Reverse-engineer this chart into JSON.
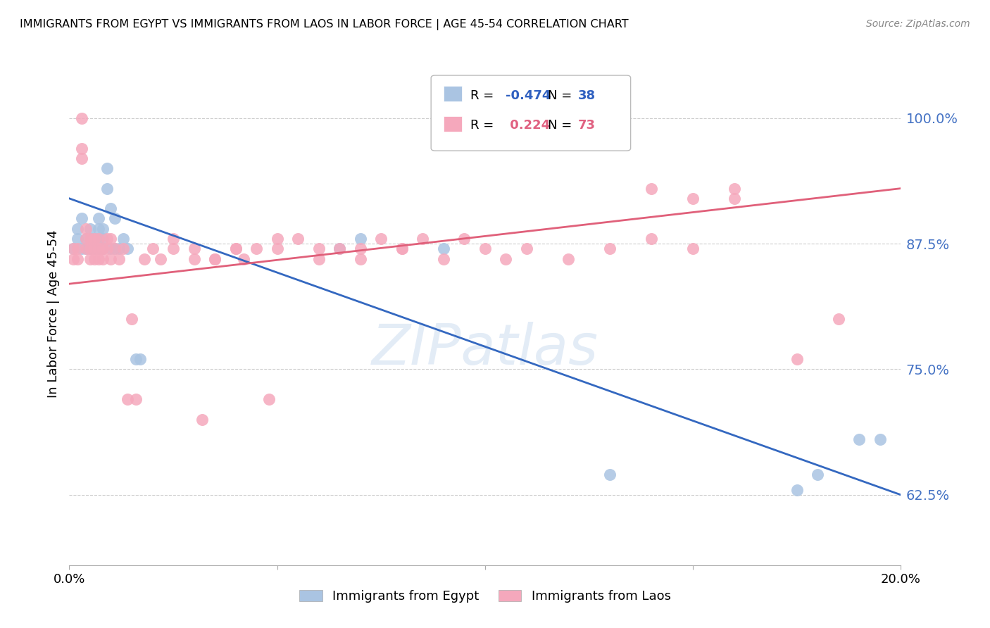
{
  "title": "IMMIGRANTS FROM EGYPT VS IMMIGRANTS FROM LAOS IN LABOR FORCE | AGE 45-54 CORRELATION CHART",
  "source": "Source: ZipAtlas.com",
  "ylabel": "In Labor Force | Age 45-54",
  "yticks": [
    0.625,
    0.75,
    0.875,
    1.0
  ],
  "ytick_labels": [
    "62.5%",
    "75.0%",
    "87.5%",
    "100.0%"
  ],
  "xmin": 0.0,
  "xmax": 0.2,
  "ymin": 0.555,
  "ymax": 1.055,
  "legend_egypt_r": "-0.474",
  "legend_egypt_n": "38",
  "legend_laos_r": "0.224",
  "legend_laos_n": "73",
  "egypt_color": "#aac4e2",
  "laos_color": "#f5a8bc",
  "egypt_line_color": "#3468c0",
  "laos_line_color": "#e0607a",
  "egypt_points_x": [
    0.001,
    0.002,
    0.002,
    0.003,
    0.003,
    0.004,
    0.004,
    0.005,
    0.005,
    0.005,
    0.006,
    0.006,
    0.007,
    0.007,
    0.007,
    0.007,
    0.008,
    0.008,
    0.008,
    0.009,
    0.009,
    0.01,
    0.01,
    0.011,
    0.011,
    0.012,
    0.013,
    0.014,
    0.016,
    0.017,
    0.065,
    0.07,
    0.09,
    0.13,
    0.175,
    0.18,
    0.19,
    0.195
  ],
  "egypt_points_y": [
    0.87,
    0.88,
    0.89,
    0.87,
    0.9,
    0.87,
    0.88,
    0.87,
    0.88,
    0.89,
    0.87,
    0.88,
    0.87,
    0.88,
    0.89,
    0.9,
    0.87,
    0.88,
    0.89,
    0.93,
    0.95,
    0.87,
    0.91,
    0.87,
    0.9,
    0.87,
    0.88,
    0.87,
    0.76,
    0.76,
    0.87,
    0.88,
    0.87,
    0.645,
    0.63,
    0.645,
    0.68,
    0.68
  ],
  "laos_points_x": [
    0.001,
    0.001,
    0.002,
    0.002,
    0.003,
    0.003,
    0.003,
    0.004,
    0.004,
    0.004,
    0.005,
    0.005,
    0.005,
    0.006,
    0.006,
    0.006,
    0.007,
    0.007,
    0.007,
    0.008,
    0.008,
    0.009,
    0.009,
    0.01,
    0.01,
    0.011,
    0.012,
    0.013,
    0.014,
    0.015,
    0.016,
    0.018,
    0.02,
    0.022,
    0.025,
    0.03,
    0.032,
    0.035,
    0.04,
    0.042,
    0.045,
    0.048,
    0.05,
    0.055,
    0.06,
    0.065,
    0.07,
    0.075,
    0.08,
    0.085,
    0.09,
    0.095,
    0.1,
    0.105,
    0.11,
    0.12,
    0.13,
    0.14,
    0.15,
    0.16,
    0.025,
    0.03,
    0.035,
    0.04,
    0.05,
    0.06,
    0.07,
    0.08,
    0.14,
    0.15,
    0.16,
    0.175,
    0.185
  ],
  "laos_points_y": [
    0.86,
    0.87,
    0.86,
    0.87,
    0.96,
    0.97,
    1.0,
    0.87,
    0.88,
    0.89,
    0.86,
    0.87,
    0.88,
    0.86,
    0.87,
    0.88,
    0.86,
    0.87,
    0.88,
    0.86,
    0.87,
    0.87,
    0.88,
    0.86,
    0.88,
    0.87,
    0.86,
    0.87,
    0.72,
    0.8,
    0.72,
    0.86,
    0.87,
    0.86,
    0.87,
    0.86,
    0.7,
    0.86,
    0.87,
    0.86,
    0.87,
    0.72,
    0.87,
    0.88,
    0.87,
    0.87,
    0.86,
    0.88,
    0.87,
    0.88,
    0.86,
    0.88,
    0.87,
    0.86,
    0.87,
    0.86,
    0.87,
    0.88,
    0.87,
    0.92,
    0.88,
    0.87,
    0.86,
    0.87,
    0.88,
    0.86,
    0.87,
    0.87,
    0.93,
    0.92,
    0.93,
    0.76,
    0.8
  ],
  "egypt_line_x0": 0.0,
  "egypt_line_x1": 0.2,
  "egypt_line_y0": 0.92,
  "egypt_line_y1": 0.625,
  "laos_line_x0": 0.0,
  "laos_line_x1": 0.2,
  "laos_line_y0": 0.835,
  "laos_line_y1": 0.93
}
